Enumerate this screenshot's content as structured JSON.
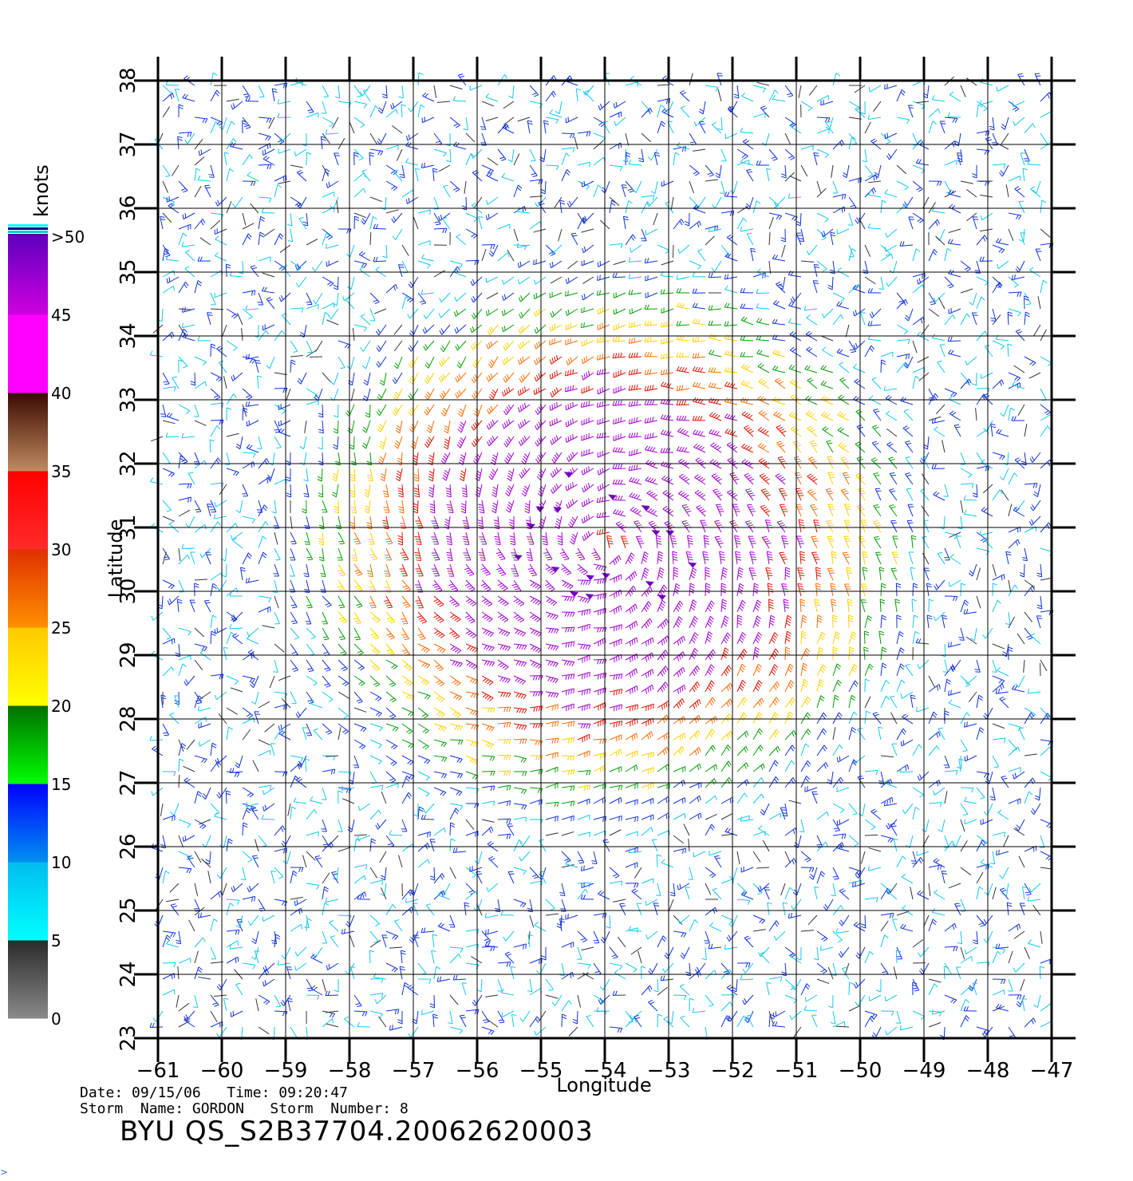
{
  "map": {
    "lon_min": -61,
    "lon_max": -47,
    "lat_min": 23,
    "lat_max": 38,
    "lon_ticks": [
      "-61",
      "-60",
      "-59",
      "-58",
      "-57",
      "-56",
      "-55",
      "-54",
      "-53",
      "-52",
      "-51",
      "-50",
      "-49",
      "-48",
      "-47"
    ],
    "lat_ticks": [
      "23",
      "24",
      "25",
      "26",
      "27",
      "28",
      "29",
      "30",
      "31",
      "32",
      "33",
      "34",
      "35",
      "36",
      "37",
      "38"
    ],
    "xlabel": "Longitude",
    "ylabel": "Latitude",
    "storm_center": {
      "lon": -54.0,
      "lat": 30.7
    },
    "grid": true
  },
  "colorbar": {
    "title": "knots",
    "tick_labels": [
      "0",
      "5",
      "10",
      "15",
      "20",
      "25",
      "30",
      "35",
      "40",
      "45",
      ">50"
    ],
    "bands": [
      {
        "range": "0-5",
        "top": "#2a2a2a",
        "bottom": "#8a8a8a"
      },
      {
        "range": "5-10",
        "top": "#00bcf0",
        "bottom": "#00ffff"
      },
      {
        "range": "10-15",
        "top": "#0000ff",
        "bottom": "#0090f0"
      },
      {
        "range": "15-20",
        "top": "#007000",
        "bottom": "#00ff00"
      },
      {
        "range": "20-25",
        "top": "#ffc800",
        "bottom": "#ffff00"
      },
      {
        "range": "25-30",
        "top": "#e03000",
        "bottom": "#ff9000"
      },
      {
        "range": "30-35",
        "top": "#ff0000",
        "bottom": "#ff2a2a"
      },
      {
        "range": "35-40",
        "top": "#3a0a00",
        "bottom": "#c08a60"
      },
      {
        "range": "40-45",
        "top": "#ff00ff",
        "bottom": "#ff00ff"
      },
      {
        "range": "45-50",
        "top": "#6000c0",
        "bottom": "#d000e0"
      }
    ]
  },
  "footer": {
    "date_line": "Date: 09/15/06   Time: 09:20:47",
    "storm_line": "Storm  Name: GORDON   Storm  Number: 8",
    "file_id": "BYU  QS_S2B37704.20062620003"
  }
}
